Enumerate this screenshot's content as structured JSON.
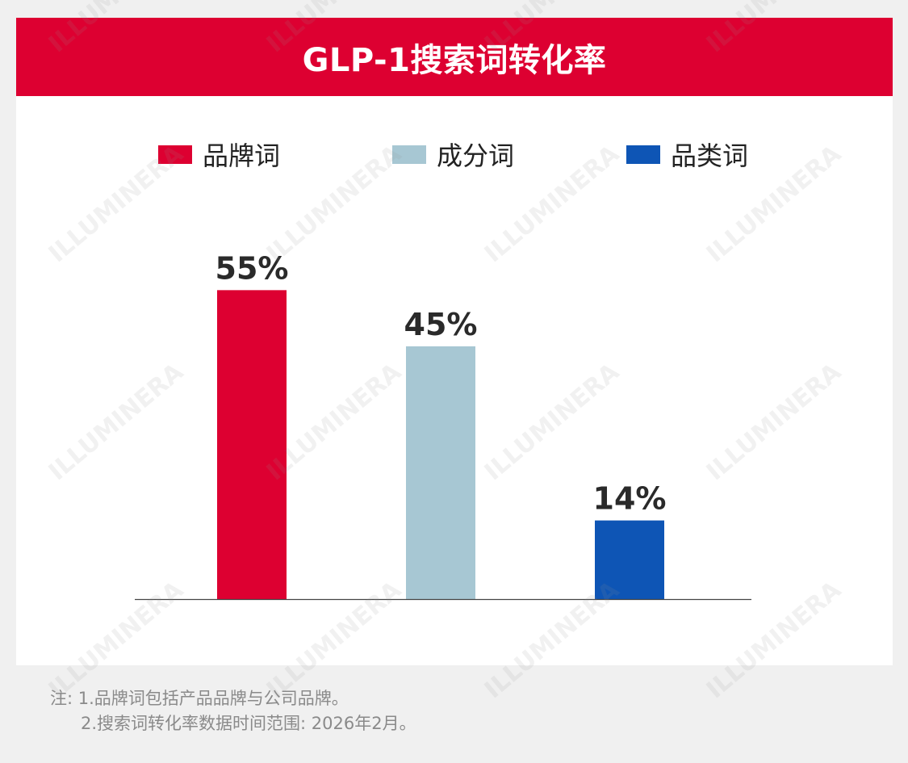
{
  "title": "GLP-1搜索词转化率",
  "chart_data": {
    "type": "bar",
    "title": "GLP-1搜索词转化率",
    "categories": [
      "品牌词",
      "成分词",
      "品类词"
    ],
    "values": [
      55,
      45,
      14
    ],
    "value_labels": [
      "55%",
      "45%",
      "14%"
    ],
    "colors": [
      "#dd0031",
      "#a7c7d3",
      "#0e55b5"
    ],
    "legend": [
      {
        "name": "品牌词",
        "color": "#dd0031"
      },
      {
        "name": "成分词",
        "color": "#a7c7d3"
      },
      {
        "name": "品类词",
        "color": "#0e55b5"
      }
    ],
    "legend_position": "top",
    "ylim": [
      0,
      70
    ],
    "grid": false,
    "xlabel": "",
    "ylabel": ""
  },
  "notes": {
    "line1": "注: 1.品牌词包括产品品牌与公司品牌。",
    "line2": "2.搜索词转化率数据时间范围: 2026年2月。"
  },
  "watermark": "ILLUMINERA"
}
